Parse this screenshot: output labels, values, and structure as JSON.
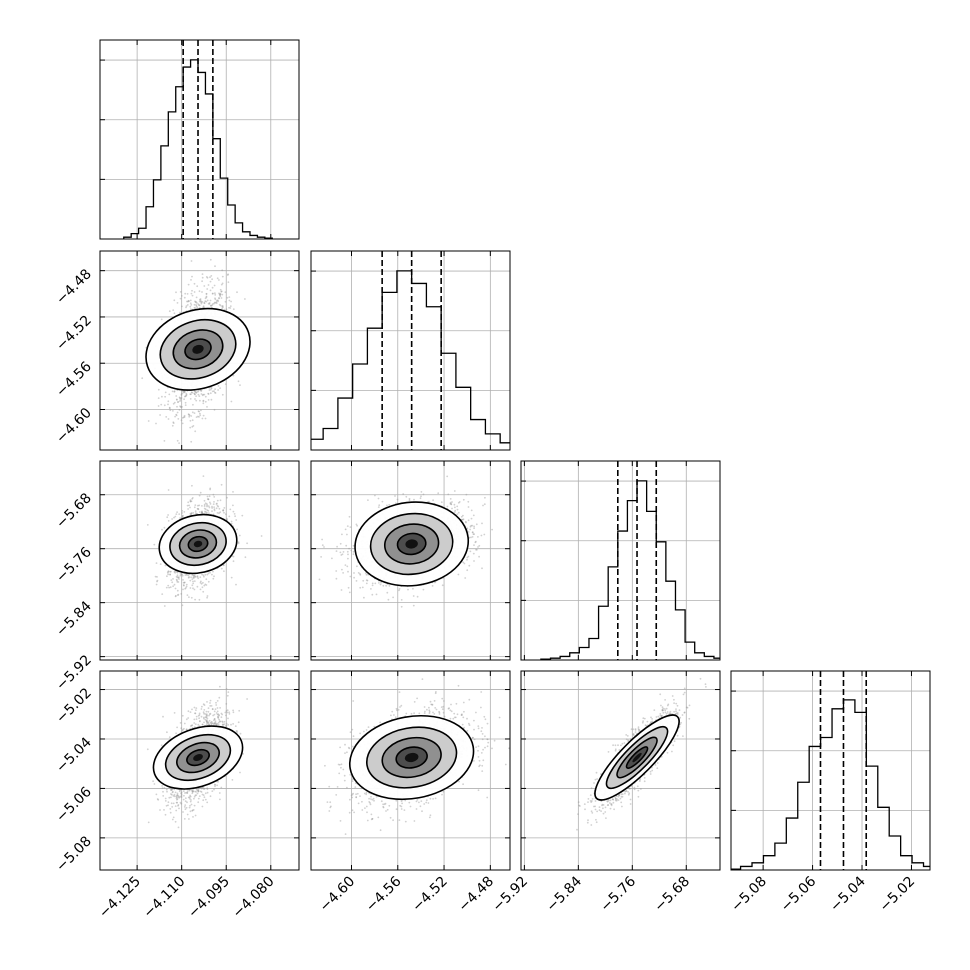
{
  "chart_data": {
    "type": "corner",
    "parameters": [
      {
        "range": [
          -4.1375,
          -4.0705
        ],
        "median": -4.1045,
        "q16": -4.1095,
        "q84": -4.0995,
        "ticks": [
          "-4.125",
          "-4.110",
          "-4.095",
          "-4.080"
        ],
        "tick_values": [
          -4.125,
          -4.11,
          -4.095,
          -4.08
        ]
      },
      {
        "range": [
          -4.635,
          -4.463
        ],
        "median": -4.548,
        "q16": -4.5735,
        "q84": -4.5225,
        "ticks": [
          "-4.60",
          "-4.56",
          "-4.52",
          "-4.48"
        ],
        "tick_values": [
          -4.6,
          -4.56,
          -4.52,
          -4.48
        ]
      },
      {
        "range": [
          -5.925,
          -5.63
        ],
        "median": -5.753,
        "q16": -5.7815,
        "q84": -5.7245,
        "ticks": [
          "-5.92",
          "-5.84",
          "-5.76",
          "-5.68"
        ],
        "tick_values": [
          -5.92,
          -5.84,
          -5.76,
          -5.68
        ]
      },
      {
        "range": [
          -5.093,
          -5.0125
        ],
        "median": -5.0475,
        "q16": -5.0568,
        "q84": -5.0383,
        "ticks": [
          "-5.08",
          "-5.06",
          "-5.04",
          "-5.02"
        ],
        "tick_values": [
          -5.08,
          -5.06,
          -5.04,
          -5.02
        ]
      }
    ],
    "histograms": [
      [
        0.01,
        0.03,
        0.06,
        0.18,
        0.33,
        0.52,
        0.71,
        0.85,
        0.96,
        1.0,
        0.93,
        0.81,
        0.56,
        0.34,
        0.19,
        0.09,
        0.04,
        0.02,
        0.01,
        0.005
      ],
      [
        0.005,
        0.01,
        0.03,
        0.06,
        0.12,
        0.29,
        0.48,
        0.68,
        0.88,
        1.0,
        0.93,
        0.8,
        0.54,
        0.35,
        0.17,
        0.09,
        0.04,
        0.02,
        0.01,
        0.005
      ],
      [
        0.005,
        0.01,
        0.02,
        0.04,
        0.07,
        0.12,
        0.3,
        0.52,
        0.72,
        0.89,
        1.0,
        0.83,
        0.66,
        0.44,
        0.28,
        0.1,
        0.04,
        0.02,
        0.01,
        0.005
      ],
      [
        0.005,
        0.02,
        0.04,
        0.08,
        0.15,
        0.29,
        0.49,
        0.69,
        0.74,
        0.9,
        0.95,
        0.88,
        0.58,
        0.35,
        0.19,
        0.08,
        0.04,
        0.02,
        0.01,
        0.005
      ]
    ],
    "correlations": [
      [
        0,
        0.3,
        0.3,
        0.45
      ],
      [
        0.3,
        0,
        0.3,
        0.4
      ],
      [
        0.3,
        0.3,
        0,
        0.85
      ],
      [
        0.45,
        0.4,
        0.85,
        0
      ]
    ],
    "grid": true
  }
}
